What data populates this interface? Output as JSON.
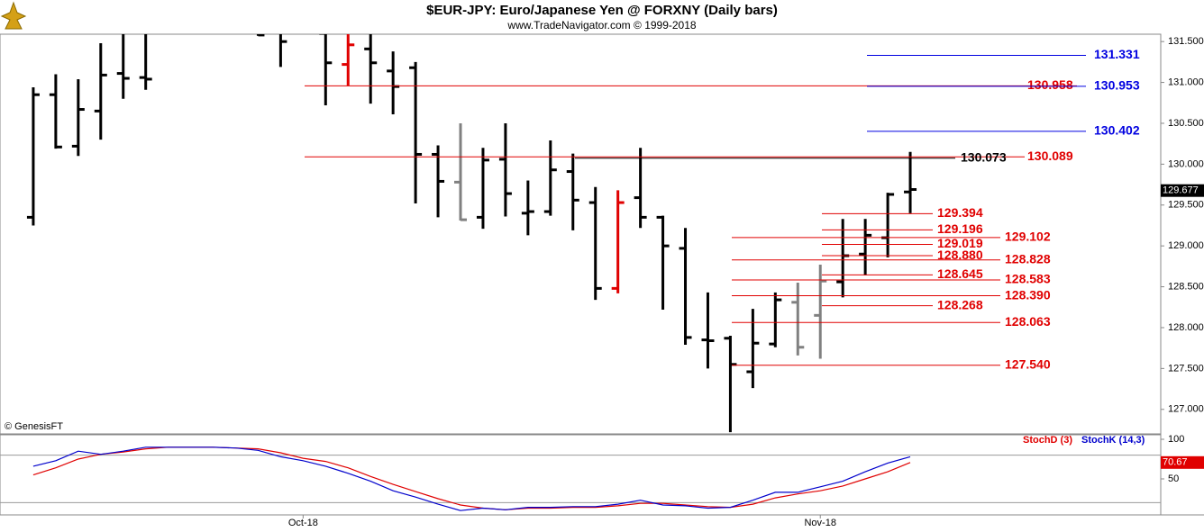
{
  "chart_data": [
    {
      "type": "ohlc",
      "title": "$EUR-JPY:  Euro/Japanese Yen @ FORXNY  (Daily bars)",
      "subtitle": "www.TradeNavigator.com © 1999-2018",
      "annotation": "© GenesisFT",
      "xlim": [
        -1.48,
        50.14
      ],
      "xticks": [
        {
          "value": 12,
          "label": "Oct-18"
        },
        {
          "value": 35,
          "label": "Nov-18"
        }
      ],
      "ylim": [
        126.7,
        131.59
      ],
      "yticks": [
        {
          "value": 127,
          "label": "127.000"
        },
        {
          "value": 127.5,
          "label": "127.500"
        },
        {
          "value": 128,
          "label": "128.000"
        },
        {
          "value": 128.5,
          "label": "128.500"
        },
        {
          "value": 129,
          "label": "129.000"
        },
        {
          "value": 129.5,
          "label": "129.500"
        },
        {
          "value": 130,
          "label": "130.000"
        },
        {
          "value": 130.5,
          "label": "130.500"
        },
        {
          "value": 131,
          "label": "131.000"
        },
        {
          "value": 131.5,
          "label": "131.500"
        }
      ],
      "open": [
        129.35,
        130.85,
        130.22,
        130.65,
        131.11,
        131.06,
        null,
        null,
        null,
        null,
        131.9,
        131.8,
        null,
        131.6,
        131.22,
        131.41,
        131.14,
        131.18,
        130.12,
        129.78,
        129.35,
        130.06,
        129.4,
        129.42,
        129.91,
        129.53,
        128.48,
        129.59,
        129.35,
        128.97,
        127.85,
        127.87,
        127.46,
        127.8,
        128.31,
        128.15,
        128.56,
        128.9,
        129.1,
        129.66
      ],
      "high": [
        130.94,
        131.1,
        131.04,
        131.48,
        131.75,
        131.7,
        null,
        null,
        null,
        null,
        132.0,
        131.9,
        null,
        131.8,
        131.7,
        131.7,
        131.38,
        131.25,
        130.23,
        130.5,
        130.2,
        130.5,
        129.8,
        130.29,
        130.13,
        129.72,
        129.68,
        130.2,
        129.37,
        129.22,
        128.43,
        127.9,
        128.23,
        128.43,
        128.55,
        128.77,
        129.33,
        129.33,
        129.65,
        130.15
      ],
      "low": [
        129.25,
        130.19,
        130.1,
        130.3,
        130.8,
        130.91,
        null,
        null,
        null,
        null,
        131.57,
        131.19,
        null,
        130.72,
        130.96,
        130.74,
        130.61,
        129.52,
        129.35,
        129.31,
        129.21,
        129.36,
        129.13,
        129.37,
        129.19,
        128.34,
        128.42,
        129.22,
        128.22,
        127.79,
        127.5,
        126.72,
        127.26,
        127.76,
        127.66,
        127.62,
        128.37,
        128.64,
        128.86,
        129.4
      ],
      "close": [
        130.85,
        130.21,
        130.67,
        131.09,
        131.05,
        131.04,
        null,
        null,
        null,
        null,
        131.58,
        131.5,
        null,
        131.24,
        131.46,
        131.24,
        130.95,
        130.12,
        129.79,
        129.32,
        130.05,
        129.64,
        129.42,
        129.93,
        129.56,
        128.48,
        129.53,
        129.35,
        129.0,
        127.88,
        127.84,
        127.55,
        127.81,
        128.34,
        127.76,
        128.57,
        128.88,
        129.13,
        129.63,
        129.69
      ],
      "bar_colors": [
        "#000000",
        "#000000",
        "#000000",
        "#000000",
        "#000000",
        "#000000",
        "#000000",
        "#000000",
        "#000000",
        "#000000",
        "#000000",
        "#000000",
        "#000000",
        "#000000",
        "#e00000",
        "#000000",
        "#000000",
        "#000000",
        "#000000",
        "#808080",
        "#000000",
        "#000000",
        "#000000",
        "#000000",
        "#000000",
        "#000000",
        "#e00000",
        "#000000",
        "#000000",
        "#000000",
        "#000000",
        "#000000",
        "#000000",
        "#000000",
        "#808080",
        "#808080",
        "#000000",
        "#000000",
        "#000000",
        "#000000"
      ],
      "last_value": 129.677,
      "levels": [
        {
          "color": "#e00000",
          "values": [
            130.958,
            130.089
          ],
          "value_labels": [
            "130.958",
            "130.089"
          ]
        },
        {
          "color": "#000000",
          "values": [
            130.073
          ],
          "value_labels": [
            "130.073"
          ]
        },
        {
          "color": "#0000e0",
          "values": [
            131.331,
            130.953,
            130.402
          ],
          "value_labels": [
            "131.331",
            "130.953",
            "130.402"
          ]
        },
        {
          "color": "#e00000",
          "values": [
            129.394,
            129.196,
            129.019,
            128.88,
            128.645,
            128.268
          ],
          "value_labels": [
            "129.394",
            "129.196",
            "129.019",
            "128.880",
            "128.645",
            "128.268"
          ]
        },
        {
          "color": "#e00000",
          "values": [
            129.102,
            128.828,
            128.583,
            128.39,
            128.063,
            127.54
          ],
          "value_labels": [
            "129.102",
            "128.828",
            "128.583",
            "128.390",
            "128.063",
            "127.540"
          ]
        }
      ]
    },
    {
      "type": "line",
      "xlim": [
        -1.48,
        50.14
      ],
      "ylim": [
        4.5,
        105.7
      ],
      "yticks": [
        50,
        100
      ],
      "hlines": [
        80,
        20
      ],
      "last_value": 70.67,
      "series": [
        {
          "name": "StochD (3)",
          "color": "#e00000",
          "values": [
            55,
            64,
            75,
            81,
            84,
            88,
            90,
            90,
            90,
            89,
            88,
            83,
            76,
            72,
            64,
            53,
            43,
            34,
            25,
            17,
            13,
            11,
            13,
            13,
            14,
            14,
            16,
            19,
            19,
            17,
            15,
            14,
            18,
            26,
            31,
            35,
            41,
            50,
            59,
            70.67
          ]
        },
        {
          "name": "StochK (14,3)",
          "color": "#0000cc",
          "values": [
            66,
            73,
            85,
            81,
            85,
            90,
            90,
            90,
            90,
            89,
            86,
            78,
            73,
            66,
            57,
            47,
            35,
            27,
            18,
            10,
            13,
            11,
            14,
            14,
            15,
            15,
            18,
            23,
            17,
            16,
            13,
            14,
            23,
            33,
            33,
            40,
            47,
            59,
            70,
            78
          ]
        }
      ]
    }
  ]
}
